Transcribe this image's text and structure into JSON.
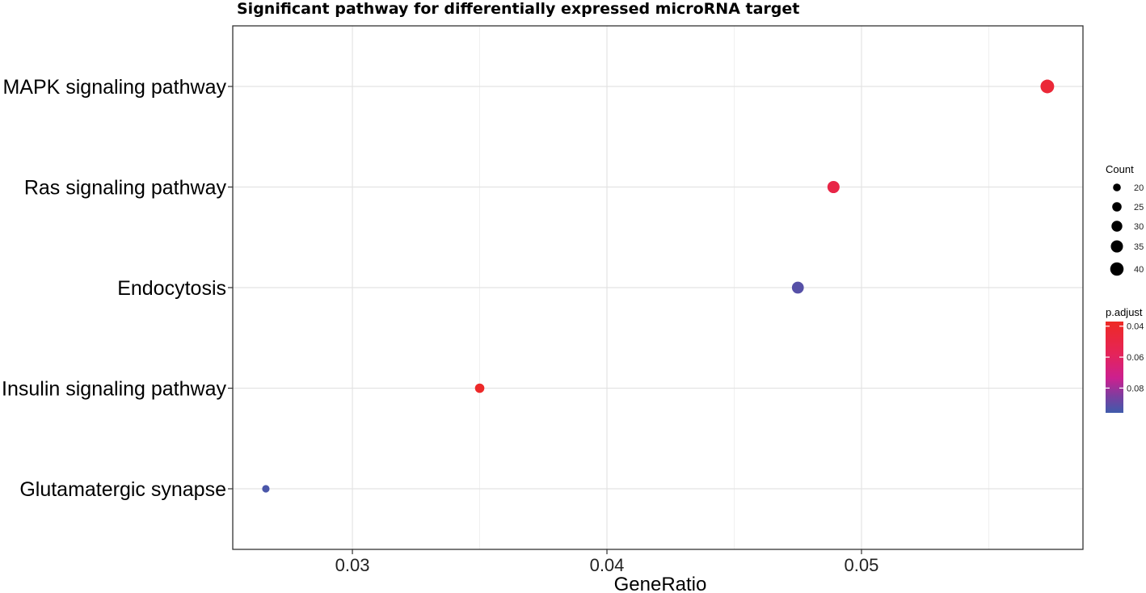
{
  "chart_data": {
    "type": "scatter",
    "title": "Significant pathway for differentially expressed microRNA target",
    "xlabel": "GeneRatio",
    "ylabel": "",
    "xlim": [
      0.0253,
      0.0587
    ],
    "xticks": [
      0.03,
      0.04,
      0.05
    ],
    "xtick_labels": [
      "0.03",
      "0.04",
      "0.05"
    ],
    "grid": true,
    "categories": [
      "MAPK signaling pathway",
      "Ras signaling pathway",
      "Endocytosis",
      "Insulin signaling pathway",
      "Glutamatergic synapse"
    ],
    "points": [
      {
        "pathway": "MAPK signaling pathway",
        "gene_ratio": 0.0573,
        "count": 41,
        "p_adjust": 0.045
      },
      {
        "pathway": "Ras signaling pathway",
        "gene_ratio": 0.0489,
        "count": 35,
        "p_adjust": 0.051
      },
      {
        "pathway": "Endocytosis",
        "gene_ratio": 0.0475,
        "count": 34,
        "p_adjust": 0.092
      },
      {
        "pathway": "Insulin signaling pathway",
        "gene_ratio": 0.035,
        "count": 25,
        "p_adjust": 0.039
      },
      {
        "pathway": "Glutamatergic synapse",
        "gene_ratio": 0.0266,
        "count": 19,
        "p_adjust": 0.094
      }
    ],
    "size_legend": {
      "title": "Count",
      "values": [
        20,
        25,
        30,
        35,
        40
      ],
      "labels": [
        "20",
        "25",
        "30",
        "35",
        "40"
      ]
    },
    "color_legend": {
      "title": "p.adjust",
      "range": [
        0.037,
        0.096
      ],
      "ticks": [
        0.04,
        0.06,
        0.08
      ],
      "tick_labels": [
        "0.04",
        "0.06",
        "0.08"
      ],
      "colors": {
        "low": "#ee2a24",
        "mid": "#cc208f",
        "high": "#3f5bab"
      }
    },
    "legend_position": "right"
  }
}
